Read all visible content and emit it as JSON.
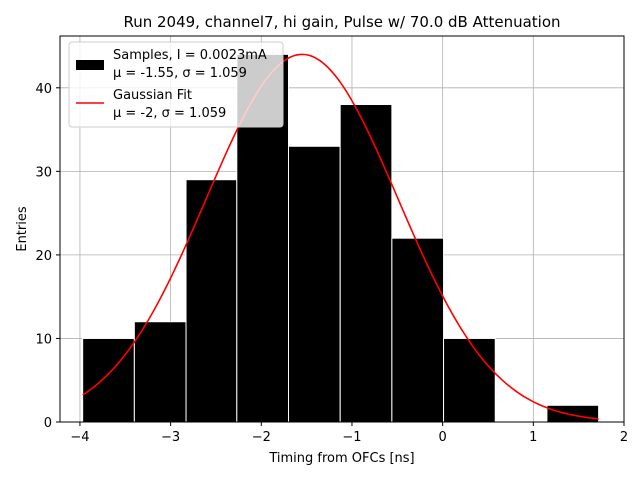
{
  "chart_data": {
    "type": "bar",
    "title": "Run 2049, channel7, hi gain, Pulse w/ 70.0 dB Attenuation",
    "xlabel": "Timing from OFCs [ns]",
    "ylabel": "Entries",
    "xlim": [
      -4.22,
      2.0
    ],
    "ylim": [
      0,
      46.2
    ],
    "xticks": [
      -4,
      -3,
      -2,
      -1,
      0,
      1,
      2
    ],
    "yticks": [
      0,
      10,
      20,
      30,
      40
    ],
    "grid": true,
    "legend_position": "top-left",
    "bins": {
      "edges": [
        -3.97,
        -3.4,
        -2.83,
        -2.27,
        -1.7,
        -1.13,
        -0.56,
        0.01,
        0.58,
        1.15,
        1.72
      ],
      "counts": [
        10,
        12,
        29,
        44,
        33,
        38,
        22,
        10,
        0,
        2
      ]
    },
    "fit": {
      "mu": -1.55,
      "sigma": 1.059,
      "amplitude": 44.0,
      "x_range": [
        -3.97,
        1.72
      ]
    },
    "series": [
      {
        "name": "Samples, I = 0.0023mA",
        "name_line2": "μ = -1.55, σ = 1.059",
        "color": "#000000",
        "kind": "histogram"
      },
      {
        "name": "Gaussian Fit",
        "name_line2": "μ = -2, σ = 1.059",
        "color": "#ff0000",
        "kind": "line"
      }
    ]
  }
}
